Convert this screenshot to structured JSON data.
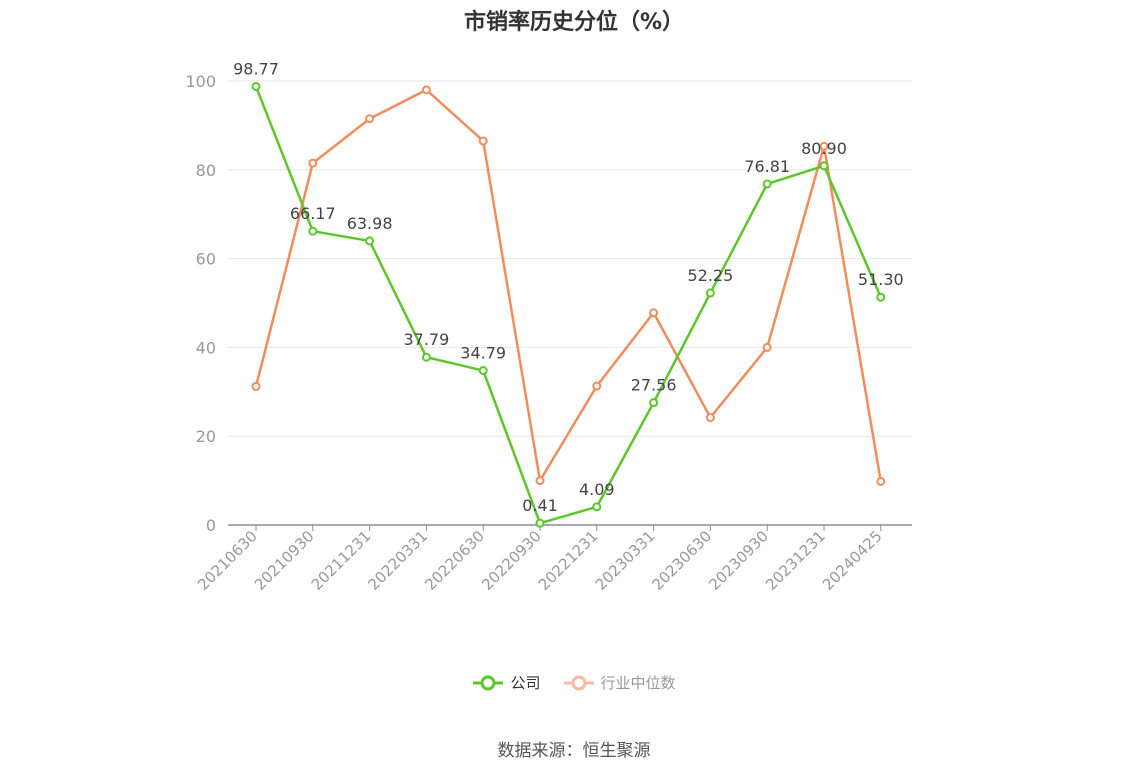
{
  "chart_data": {
    "type": "line",
    "title": "市销率历史分位（%）",
    "categories": [
      "20210630",
      "20210930",
      "20211231",
      "20220331",
      "20220630",
      "20220930",
      "20221231",
      "20230331",
      "20230630",
      "20230930",
      "20231231",
      "20240425"
    ],
    "ylim": [
      0,
      100
    ],
    "yticks": [
      "0",
      "20",
      "40",
      "60",
      "80",
      "100"
    ],
    "grid": true,
    "legend_position": "bottom-center",
    "series": [
      {
        "name": "公司",
        "color": "#5cc62c",
        "values": [
          98.77,
          66.17,
          63.98,
          37.79,
          34.79,
          0.41,
          4.09,
          27.56,
          52.25,
          76.81,
          80.9,
          51.3
        ],
        "labels": [
          "98.77",
          "66.17",
          "63.98",
          "37.79",
          "34.79",
          "0.41",
          "4.09",
          "27.56",
          "52.25",
          "76.81",
          "80.90",
          "51.30"
        ]
      },
      {
        "name": "行业中位数",
        "color": "#f28c5b",
        "values": [
          31.2,
          81.5,
          91.5,
          98.0,
          86.5,
          10.0,
          31.3,
          47.8,
          24.2,
          40.0,
          85.3,
          9.8
        ]
      }
    ]
  },
  "legend": {
    "company_label": "公司",
    "industry_label": "行业中位数",
    "company_color": "#5cc62c",
    "industry_color": "#f7b9a0"
  },
  "source_note": "数据来源：恒生聚源"
}
